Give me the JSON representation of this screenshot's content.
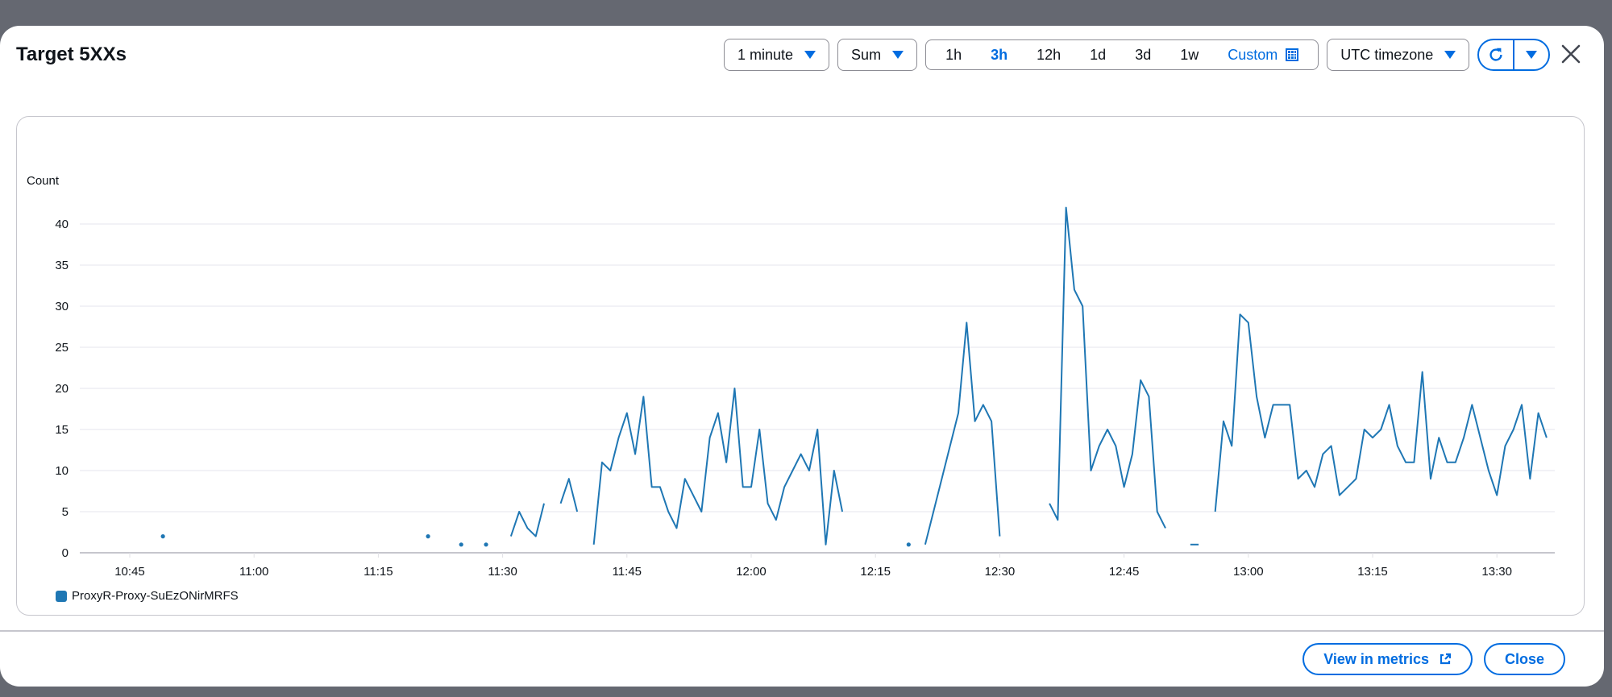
{
  "modal": {
    "title": "Target 5XXs"
  },
  "toolbar": {
    "period_dropdown": "1 minute",
    "stat_dropdown": "Sum",
    "time_ranges": [
      "1h",
      "3h",
      "12h",
      "1d",
      "3d",
      "1w"
    ],
    "active_range": "3h",
    "custom_label": "Custom",
    "timezone_dropdown": "UTC timezone",
    "accent_color": "#006ce0"
  },
  "footer": {
    "view_in_metrics_label": "View in metrics",
    "close_label": "Close"
  },
  "chart_data": {
    "type": "line",
    "title": "Target 5XXs",
    "ylabel": "Count",
    "xlabel": "",
    "ylim": [
      0,
      40
    ],
    "y_ticks": [
      0,
      5,
      10,
      15,
      20,
      25,
      30,
      35,
      40
    ],
    "x_ticks": [
      "10:45",
      "11:00",
      "11:15",
      "11:30",
      "11:45",
      "12:00",
      "12:15",
      "12:30",
      "12:45",
      "13:00",
      "13:15",
      "13:30"
    ],
    "grid": true,
    "legend_position": "bottom-left",
    "series": [
      {
        "name": "ProxyR-Proxy-SuEzONirMRFS",
        "color": "#1f77b4",
        "segments": [
          {
            "start": "10:49",
            "values": [
              2
            ]
          },
          {
            "start": "11:21",
            "values": [
              2
            ]
          },
          {
            "start": "11:25",
            "values": [
              1
            ]
          },
          {
            "start": "11:28",
            "values": [
              1
            ]
          },
          {
            "start": "11:31",
            "values": [
              2,
              5,
              3,
              2,
              6
            ]
          },
          {
            "start": "11:37",
            "values": [
              6,
              9,
              5
            ]
          },
          {
            "start": "11:41",
            "values": [
              1,
              11,
              10,
              14,
              17,
              12,
              19,
              8,
              8,
              5,
              3,
              9,
              7,
              5,
              14,
              17,
              11,
              20,
              8,
              8,
              15,
              6,
              4,
              8,
              10,
              12,
              10,
              15,
              1,
              10,
              5
            ]
          },
          {
            "start": "12:19",
            "values": [
              1
            ]
          },
          {
            "start": "12:21",
            "values": [
              1,
              5,
              9,
              13,
              17,
              28,
              16,
              18,
              16,
              2
            ]
          },
          {
            "start": "12:36",
            "values": [
              6,
              4,
              42,
              32,
              30,
              10,
              13,
              15,
              13,
              8,
              12,
              21,
              19,
              5,
              3
            ]
          },
          {
            "start": "12:53",
            "values": [
              1,
              1
            ]
          },
          {
            "start": "12:56",
            "values": [
              5,
              16,
              13,
              29,
              28,
              19,
              14,
              18,
              18,
              18,
              9,
              10,
              8,
              12,
              13,
              7,
              8,
              9,
              15,
              14,
              15,
              18,
              13,
              11,
              11,
              22,
              9,
              14,
              11,
              11,
              14,
              18,
              14,
              10,
              7,
              13,
              15,
              18,
              9,
              17,
              14
            ]
          }
        ]
      }
    ]
  }
}
